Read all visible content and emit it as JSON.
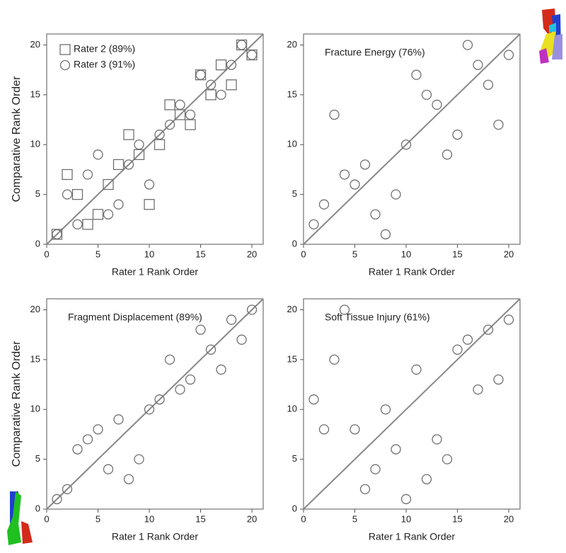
{
  "chart_data": [
    {
      "type": "scatter",
      "xlabel": "Rater 1 Rank Order",
      "ylabel": "Comparative Rank Order",
      "xlim": [
        0,
        21.1
      ],
      "ylim": [
        0,
        21.1
      ],
      "xticks": [
        0,
        5,
        10,
        15,
        20
      ],
      "yticks": [
        0,
        5,
        10,
        15,
        20
      ],
      "diagonal": true,
      "legend": "upper left",
      "series": [
        {
          "name": "Rater 2 (89%)",
          "marker": "square",
          "color": "#707070",
          "x": [
            1,
            2,
            3,
            4,
            5,
            6,
            7,
            8,
            9,
            10,
            11,
            12,
            13,
            14,
            15,
            16,
            17,
            18,
            19,
            20
          ],
          "values": [
            1,
            7,
            5,
            2,
            3,
            6,
            8,
            11,
            9,
            4,
            10,
            14,
            13,
            12,
            17,
            15,
            18,
            16,
            20,
            19
          ]
        },
        {
          "name": "Rater 3 (91%)",
          "marker": "circle",
          "color": "#707070",
          "x": [
            1,
            2,
            3,
            4,
            5,
            6,
            7,
            8,
            9,
            10,
            11,
            12,
            13,
            14,
            15,
            16,
            17,
            18,
            19,
            20
          ],
          "values": [
            1,
            5,
            2,
            7,
            9,
            3,
            4,
            8,
            10,
            6,
            11,
            12,
            14,
            13,
            17,
            16,
            15,
            18,
            20,
            19
          ]
        }
      ]
    },
    {
      "type": "scatter",
      "title": "Fracture Energy (76%)",
      "xlabel": "Rater 1 Rank Order",
      "xlim": [
        0,
        21.1
      ],
      "ylim": [
        0,
        21.1
      ],
      "xticks": [
        0,
        5,
        10,
        15,
        20
      ],
      "yticks": [
        0,
        5,
        10,
        15,
        20
      ],
      "diagonal": true,
      "series": [
        {
          "marker": "circle",
          "color": "#707070",
          "x": [
            1,
            2,
            3,
            4,
            5,
            6,
            7,
            8,
            9,
            10,
            11,
            12,
            13,
            14,
            15,
            16,
            17,
            18,
            19,
            20
          ],
          "values": [
            2,
            4,
            13,
            7,
            6,
            8,
            3,
            1,
            5,
            10,
            17,
            15,
            14,
            9,
            11,
            20,
            18,
            16,
            12,
            19
          ]
        }
      ]
    },
    {
      "type": "scatter",
      "title": "Fragment Displacement (89%)",
      "xlabel": "Rater 1 Rank Order",
      "ylabel": "Comparative Rank Order",
      "xlim": [
        0,
        21.1
      ],
      "ylim": [
        0,
        21.1
      ],
      "xticks": [
        0,
        5,
        10,
        15,
        20
      ],
      "yticks": [
        0,
        5,
        10,
        15,
        20
      ],
      "diagonal": true,
      "series": [
        {
          "marker": "circle",
          "color": "#707070",
          "x": [
            1,
            2,
            3,
            4,
            5,
            6,
            7,
            8,
            9,
            10,
            11,
            12,
            13,
            14,
            15,
            16,
            17,
            18,
            19,
            20
          ],
          "values": [
            1,
            2,
            6,
            7,
            8,
            4,
            9,
            3,
            5,
            10,
            11,
            15,
            12,
            13,
            18,
            16,
            14,
            19,
            17,
            20
          ]
        }
      ]
    },
    {
      "type": "scatter",
      "title": "Soft Tissue Injury (61%)",
      "xlabel": "Rater 1 Rank Order",
      "xlim": [
        0,
        21.1
      ],
      "ylim": [
        0,
        21.1
      ],
      "xticks": [
        0,
        5,
        10,
        15,
        20
      ],
      "yticks": [
        0,
        5,
        10,
        15,
        20
      ],
      "diagonal": true,
      "series": [
        {
          "marker": "circle",
          "color": "#707070",
          "x": [
            1,
            2,
            3,
            4,
            5,
            6,
            7,
            8,
            9,
            10,
            11,
            12,
            13,
            14,
            15,
            16,
            17,
            18,
            19,
            20
          ],
          "values": [
            11,
            8,
            15,
            20,
            8,
            2,
            4,
            10,
            6,
            1,
            14,
            3,
            7,
            5,
            16,
            17,
            12,
            18,
            13,
            19
          ]
        }
      ]
    }
  ]
}
